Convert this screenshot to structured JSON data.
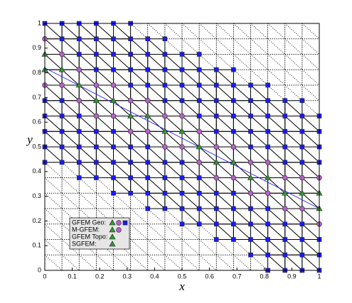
{
  "chart_data": {
    "type": "scatter",
    "xlabel": "x",
    "ylabel": "y",
    "xlim": [
      0,
      1
    ],
    "ylim": [
      0,
      1
    ],
    "xticks": [
      0,
      0.1,
      0.2,
      0.3,
      0.4,
      0.5,
      0.6,
      0.7,
      0.8,
      0.9,
      1
    ],
    "yticks": [
      0,
      0.1,
      0.2,
      0.3,
      0.4,
      0.5,
      0.6,
      0.7,
      0.8,
      0.9,
      1
    ],
    "series": [
      {
        "marker": "square",
        "color": "#1a1aff",
        "x": [
          0,
          0.0625,
          0.125,
          0.1875,
          0.25,
          0.3125,
          0.375,
          0.4375,
          0.5,
          0.5625,
          0.625,
          0.6875,
          0.75,
          0.8125,
          0.875,
          0.9375,
          1
        ],
        "y": [
          [
            0.4375,
            0.5,
            0.5625,
            0.625,
            0.6875,
            1
          ],
          [
            0.4375,
            0.5,
            0.5625,
            0.625,
            0.6875,
            0.9375,
            1
          ],
          [
            0.375,
            0.4375,
            0.5,
            0.5625,
            0.625,
            0.875,
            0.9375,
            1
          ],
          [
            0.375,
            0.4375,
            0.5,
            0.5625,
            0.8125,
            0.875,
            0.9375,
            1
          ],
          [
            0.3125,
            0.375,
            0.4375,
            0.5,
            0.5625,
            0.8125,
            0.875,
            0.9375,
            1
          ],
          [
            0.3125,
            0.375,
            0.4375,
            0.5,
            0.75,
            0.8125,
            0.875,
            0.9375,
            1
          ],
          [
            0.25,
            0.3125,
            0.375,
            0.4375,
            0.5,
            0.75,
            0.8125,
            0.875,
            0.9375
          ],
          [
            0.25,
            0.3125,
            0.375,
            0.4375,
            0.6875,
            0.75,
            0.8125,
            0.875,
            0.9375
          ],
          [
            0.1875,
            0.25,
            0.3125,
            0.375,
            0.4375,
            0.6875,
            0.75,
            0.8125,
            0.875
          ],
          [
            0.1875,
            0.25,
            0.3125,
            0.375,
            0.625,
            0.6875,
            0.75,
            0.8125,
            0.875
          ],
          [
            0.125,
            0.1875,
            0.25,
            0.3125,
            0.5625,
            0.625,
            0.6875,
            0.75,
            0.8125
          ],
          [
            0.125,
            0.1875,
            0.25,
            0.3125,
            0.5625,
            0.625,
            0.6875,
            0.75,
            0.8125
          ],
          [
            0.0625,
            0.125,
            0.1875,
            0.25,
            0.5,
            0.5625,
            0.625,
            0.6875,
            0.75
          ],
          [
            0,
            0.0625,
            0.125,
            0.1875,
            0.25,
            0.5,
            0.5625,
            0.625,
            0.6875,
            0.75
          ],
          [
            0,
            0.0625,
            0.125,
            0.1875,
            0.4375,
            0.5,
            0.5625,
            0.625,
            0.6875
          ],
          [
            0,
            0.0625,
            0.125,
            0.1875,
            0.4375,
            0.5,
            0.5625,
            0.625,
            0.6875
          ],
          [
            0,
            0.0625,
            0.125,
            0.4375,
            0.5,
            0.5625,
            0.625
          ]
        ]
      },
      {
        "marker": "circle",
        "color": "#b461c8",
        "x": [
          0,
          0.0625,
          0.125,
          0.1875,
          0.25,
          0.3125,
          0.375,
          0.4375,
          0.5,
          0.5625,
          0.625,
          0.6875,
          0.75,
          0.8125,
          0.875,
          0.9375,
          1
        ],
        "y": [
          [
            0.75,
            0.9375
          ],
          [
            0.75,
            0.875
          ],
          [
            0.6875,
            0.8125
          ],
          [
            0.625,
            0.75
          ],
          [
            0.625,
            0.75
          ],
          [
            0.5625,
            0.6875
          ],
          [
            0.5625,
            0.6875
          ],
          [
            0.5,
            0.625
          ],
          [
            0.5,
            0.625
          ],
          [
            0.4375,
            0.5625
          ],
          [
            0.375,
            0.5
          ],
          [
            0.375,
            0.5
          ],
          [
            0.3125,
            0.4375
          ],
          [
            0.3125,
            0.4375
          ],
          [
            0.25,
            0.375
          ],
          [
            0.25,
            0.375
          ],
          [
            0.1875,
            0.375
          ]
        ]
      },
      {
        "marker": "triangle",
        "color": "#2f9a2f",
        "x": [
          0,
          0.0625,
          0.125,
          0.1875,
          0.25,
          0.3125,
          0.375,
          0.4375,
          0.5,
          0.5625,
          0.625,
          0.6875,
          0.75,
          0.8125,
          0.875,
          0.9375,
          1
        ],
        "y": [
          [
            0.8125,
            0.875
          ],
          [
            0.8125
          ],
          [
            0.75
          ],
          [
            0.6875
          ],
          [
            0.6875
          ],
          [
            0.625
          ],
          [
            0.625
          ],
          [
            0.5625
          ],
          [
            0.5625
          ],
          [
            0.5
          ],
          [
            0.4375
          ],
          [
            0.4375
          ],
          [
            0.375
          ],
          [
            0.375
          ],
          [
            0.3125
          ],
          [
            0.3125
          ],
          [
            0.25,
            0.3125
          ]
        ]
      }
    ],
    "interface": {
      "x": [
        0,
        1
      ],
      "y": [
        0.82,
        0.25
      ],
      "color": "#2424ff"
    },
    "legend": [
      {
        "name": "GFEM Geo:",
        "markers": [
          "triangle",
          "circle",
          "square"
        ]
      },
      {
        "name": "M-GFEM:",
        "markers": [
          "triangle",
          "circle"
        ]
      },
      {
        "name": "GFEM Topo:",
        "markers": [
          "triangle"
        ]
      },
      {
        "name": "SGFEM:",
        "markers": [
          "triangle"
        ]
      }
    ]
  }
}
